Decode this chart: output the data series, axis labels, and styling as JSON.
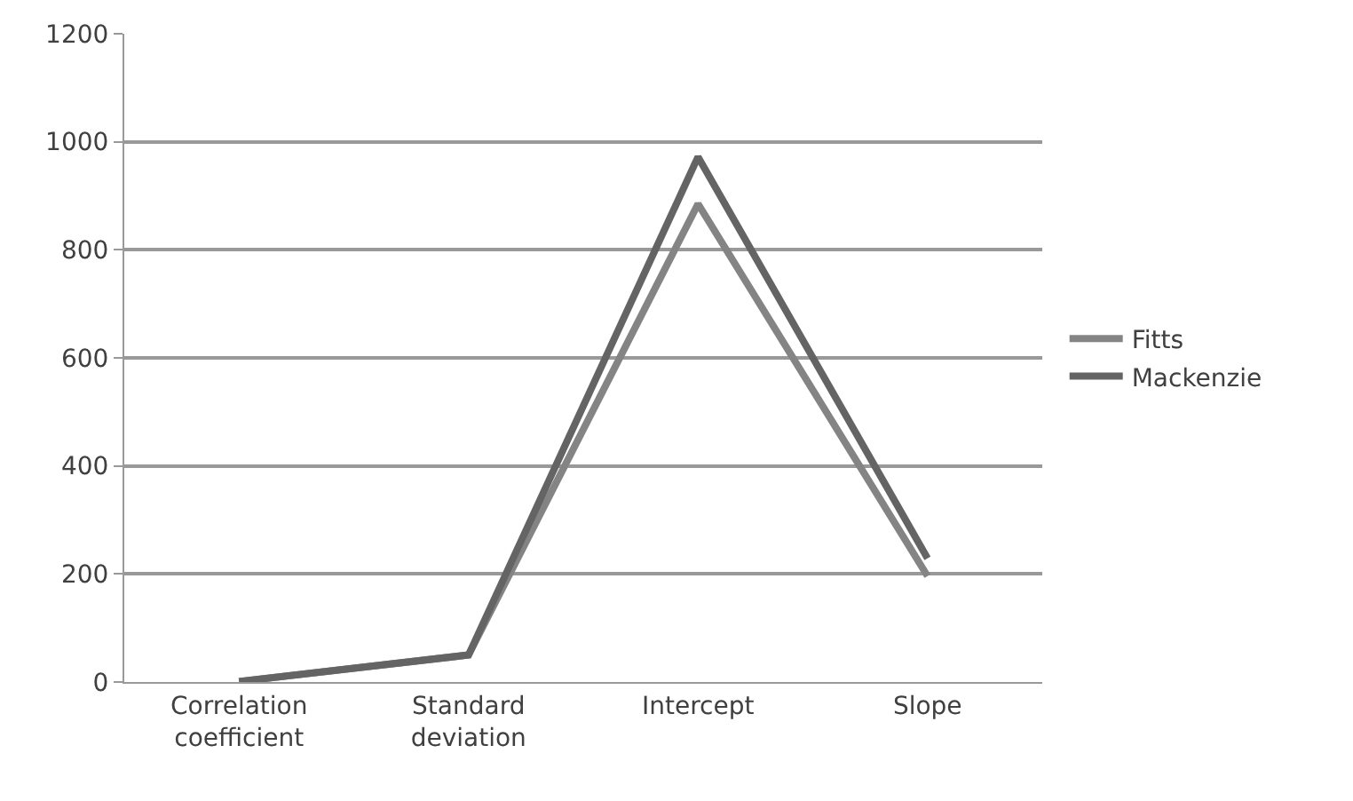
{
  "chart_data": {
    "type": "line",
    "categories": [
      "Correlation coefficient",
      "Standard deviation",
      "Intercept",
      "Slope"
    ],
    "series": [
      {
        "name": "Fitts",
        "color": "#848484",
        "values": [
          1,
          50,
          885,
          196
        ]
      },
      {
        "name": "Mackenzie",
        "color": "#646464",
        "values": [
          1,
          50,
          972,
          229
        ]
      }
    ],
    "ylim": [
      0,
      1200
    ],
    "yticks": [
      0,
      200,
      400,
      600,
      800,
      1000,
      1200
    ],
    "grid": "y",
    "legend": "right",
    "marker": "none",
    "line_style": "solid"
  }
}
